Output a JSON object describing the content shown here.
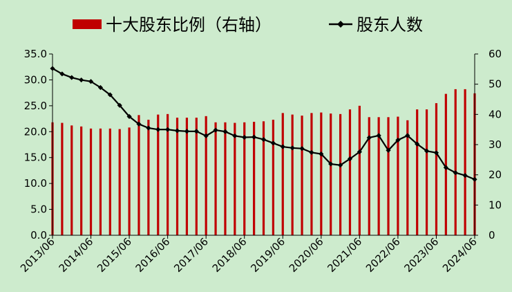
{
  "chart_data": {
    "type": "bar+line",
    "legend": {
      "position": "top",
      "bar_label": "十大股东比例（右轴）",
      "line_label": "股东人数"
    },
    "x": [
      "2013/06",
      "2013/09",
      "2013/12",
      "2014/03",
      "2014/06",
      "2014/09",
      "2014/12",
      "2015/03",
      "2015/06",
      "2015/09",
      "2015/12",
      "2016/03",
      "2016/06",
      "2016/09",
      "2016/12",
      "2017/03",
      "2017/06",
      "2017/09",
      "2017/12",
      "2018/03",
      "2018/06",
      "2018/09",
      "2018/12",
      "2019/03",
      "2019/06",
      "2019/09",
      "2019/12",
      "2020/03",
      "2020/06",
      "2020/09",
      "2020/12",
      "2021/03",
      "2021/06",
      "2021/09",
      "2021/12",
      "2022/03",
      "2022/06",
      "2022/09",
      "2022/12",
      "2023/03",
      "2023/06",
      "2023/09",
      "2023/12",
      "2024/03",
      "2024/06"
    ],
    "x_tick_labels": [
      "2013/06",
      "2014/06",
      "2015/06",
      "2016/06",
      "2017/06",
      "2018/06",
      "2019/06",
      "2020/06",
      "2021/06",
      "2022/06",
      "2023/06",
      "2024/06"
    ],
    "left_axis": {
      "ylim": [
        0,
        35
      ],
      "ticks": [
        "0.0",
        "5.0",
        "10.0",
        "15.0",
        "20.0",
        "25.0",
        "30.0",
        "35.0"
      ]
    },
    "right_axis": {
      "ylim": [
        0,
        60
      ],
      "ticks": [
        "0",
        "10",
        "20",
        "30",
        "40",
        "50",
        "60"
      ]
    },
    "series": [
      {
        "name": "十大股东比例（右轴）",
        "type": "bar",
        "axis": "left",
        "color": "#c00000",
        "values": [
          21.8,
          21.7,
          21.2,
          21.0,
          20.6,
          20.6,
          20.6,
          20.5,
          20.8,
          23.2,
          22.3,
          23.3,
          23.4,
          22.7,
          22.7,
          22.7,
          23.0,
          21.8,
          21.8,
          21.7,
          21.8,
          21.9,
          22.0,
          22.3,
          23.6,
          23.3,
          23.1,
          23.6,
          23.7,
          23.5,
          23.4,
          24.3,
          25.0,
          22.8,
          22.8,
          22.8,
          22.9,
          22.2,
          24.3,
          24.3,
          25.5,
          27.3,
          28.2,
          28.2,
          27.4
        ]
      },
      {
        "name": "股东人数",
        "type": "line",
        "axis": "right",
        "color": "#000000",
        "values": [
          55.2,
          53.4,
          52.2,
          51.4,
          50.9,
          48.9,
          46.5,
          43.0,
          39.3,
          36.8,
          35.5,
          35.0,
          35.0,
          34.6,
          34.4,
          34.4,
          32.9,
          34.8,
          34.3,
          32.9,
          32.4,
          32.5,
          31.7,
          30.5,
          29.3,
          28.9,
          28.7,
          27.4,
          26.9,
          23.6,
          23.2,
          25.3,
          27.6,
          32.3,
          33.0,
          28.1,
          31.5,
          33.0,
          30.2,
          27.9,
          27.3,
          22.4,
          20.7,
          19.8,
          18.5
        ]
      }
    ]
  }
}
